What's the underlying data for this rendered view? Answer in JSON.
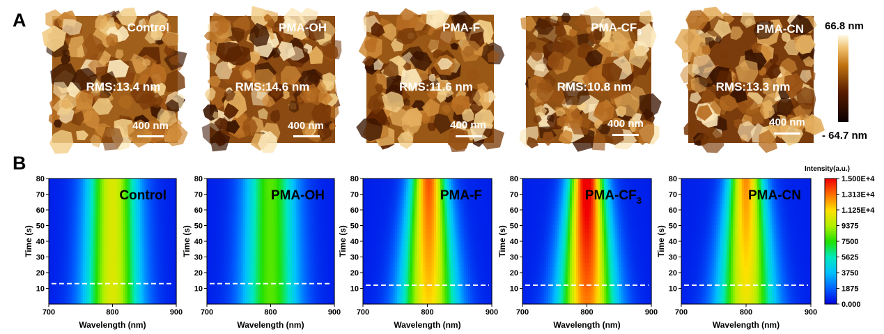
{
  "panel_a": {
    "label": "A",
    "images": [
      {
        "name": "Control",
        "sub": "",
        "rms": "RMS:13.4 nm",
        "scale_bar": "400 nm"
      },
      {
        "name": "PMA-OH",
        "sub": "",
        "rms": "RMS:14.6 nm",
        "scale_bar": "400 nm"
      },
      {
        "name": "PMA-F",
        "sub": "",
        "rms": "RMS:11.6 nm",
        "scale_bar": "400 nm"
      },
      {
        "name": "PMA-CF",
        "sub": "3",
        "rms": "RMS:10.8 nm",
        "scale_bar": "400 nm"
      },
      {
        "name": "PMA-CN",
        "sub": "",
        "rms": "RMS:13.3 nm",
        "scale_bar": "400 nm"
      }
    ],
    "colorbar": {
      "max_label": "66.8 nm",
      "min_label": "- 64.7 nm"
    }
  },
  "panel_b": {
    "label": "B",
    "colorbar": {
      "title": "Intensity(a.u.)",
      "ticks": [
        "1.500E+4",
        "1.313E+4",
        "1.125E+4",
        "9375",
        "7500",
        "5625",
        "3750",
        "1875",
        "0.000"
      ],
      "colors": [
        "#0000e0",
        "#0060ff",
        "#00c0ff",
        "#00e8c0",
        "#20e000",
        "#b0f000",
        "#ffe000",
        "#ff7000",
        "#f00000"
      ]
    }
  },
  "chart_data": [
    {
      "type": "heatmap",
      "title": "Control",
      "title_sub": "",
      "xlabel": "Wavelength (nm)",
      "ylabel": "Time (s)",
      "xlim": [
        700,
        900
      ],
      "ylim": [
        0,
        80
      ],
      "xticks": [
        700,
        800,
        900
      ],
      "yticks": [
        10,
        20,
        30,
        40,
        50,
        60,
        70,
        80
      ],
      "peak_wavelength": 800,
      "peak_intensity_start": 9500,
      "peak_intensity_end": 9500,
      "dashed_line_time": 13
    },
    {
      "type": "heatmap",
      "title": "PMA-OH",
      "title_sub": "",
      "xlabel": "Wavelength (nm)",
      "ylabel": "Time (s)",
      "xlim": [
        700,
        900
      ],
      "ylim": [
        0,
        80
      ],
      "xticks": [
        700,
        800,
        900
      ],
      "yticks": [
        10,
        20,
        30,
        40,
        50,
        60,
        70,
        80
      ],
      "peak_wavelength": 800,
      "peak_intensity_start": 7300,
      "peak_intensity_end": 7300,
      "dashed_line_time": 13
    },
    {
      "type": "heatmap",
      "title": "PMA-F",
      "title_sub": "",
      "xlabel": "Wavelength (nm)",
      "ylabel": "Time (s)",
      "xlim": [
        700,
        900
      ],
      "ylim": [
        0,
        80
      ],
      "xticks": [
        700,
        800,
        900
      ],
      "yticks": [
        10,
        20,
        30,
        40,
        50,
        60,
        70,
        80
      ],
      "peak_wavelength": 802,
      "peak_intensity_start": 10500,
      "peak_intensity_end": 12800,
      "dashed_line_time": 12
    },
    {
      "type": "heatmap",
      "title": "PMA-CF",
      "title_sub": "3",
      "xlabel": "Wavelength (nm)",
      "ylabel": "Time (s)",
      "xlim": [
        700,
        900
      ],
      "ylim": [
        0,
        80
      ],
      "xticks": [
        700,
        800,
        900
      ],
      "yticks": [
        10,
        20,
        30,
        40,
        50,
        60,
        70,
        80
      ],
      "peak_wavelength": 800,
      "peak_intensity_start": 12000,
      "peak_intensity_end": 15000,
      "dashed_line_time": 12
    },
    {
      "type": "heatmap",
      "title": "PMA-CN",
      "title_sub": "",
      "xlabel": "Wavelength (nm)",
      "ylabel": "Time (s)",
      "xlim": [
        700,
        900
      ],
      "ylim": [
        0,
        80
      ],
      "xticks": [
        700,
        800,
        900
      ],
      "yticks": [
        10,
        20,
        30,
        40,
        50,
        60,
        70,
        80
      ],
      "peak_wavelength": 800,
      "peak_intensity_start": 9800,
      "peak_intensity_end": 11800,
      "dashed_line_time": 12
    }
  ]
}
